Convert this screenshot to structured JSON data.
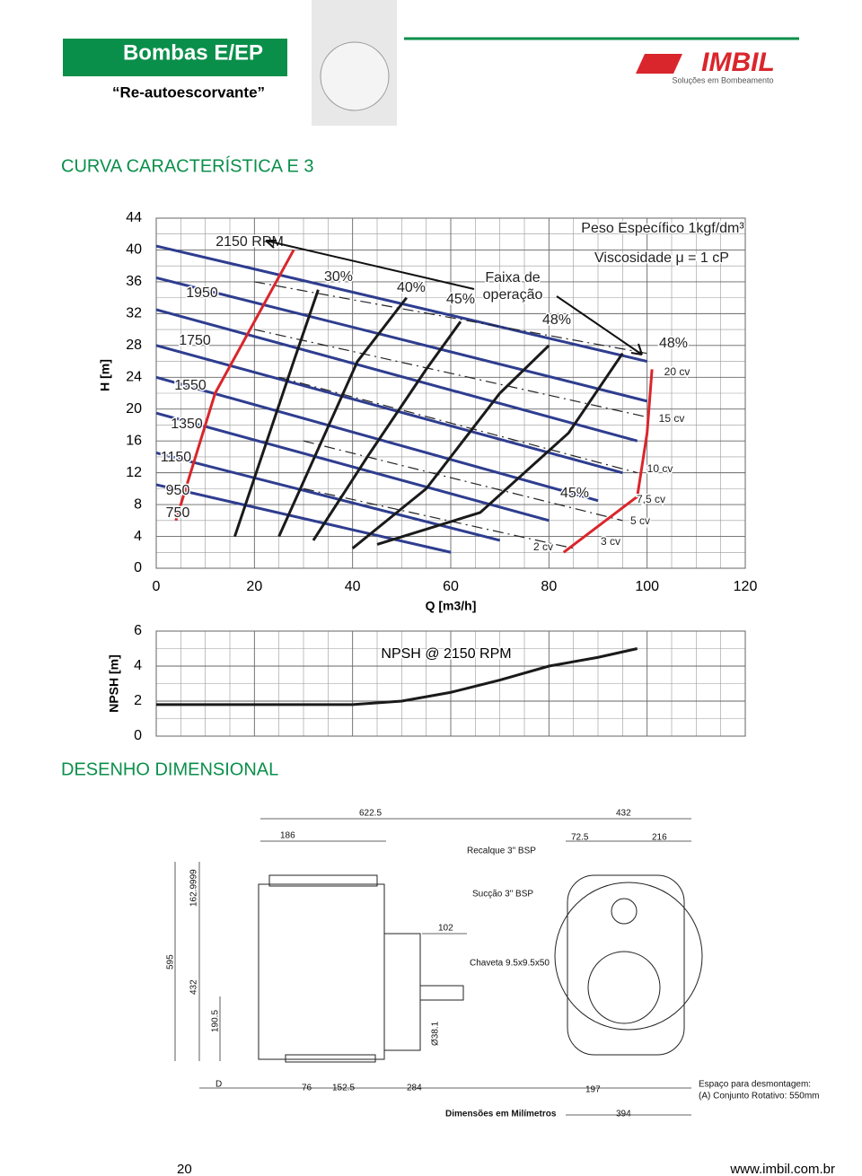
{
  "header": {
    "title": "Bombas E/EP",
    "subtitle": "“Re-autoescorvante”",
    "brand": "IMBIL",
    "tagline": "Soluções em Bombeamento"
  },
  "section_titles": [
    "CURVA CARACTERÍSTICA E 3",
    "DESENHO DIMENSIONAL"
  ],
  "chart_data": [
    {
      "type": "line",
      "xlabel": "Q [m3/h]",
      "ylabel": "H [m]",
      "xlim": [
        0,
        120
      ],
      "ylim": [
        0,
        44
      ],
      "xticks": [
        0,
        20,
        40,
        60,
        80,
        100,
        120
      ],
      "yticks": [
        0,
        4,
        8,
        12,
        16,
        20,
        24,
        28,
        32,
        36,
        40,
        44
      ],
      "grid": true,
      "annotations": [
        "2150 RPM",
        "1950",
        "1750",
        "1550",
        "1350",
        "1150",
        "950",
        "750",
        "30%",
        "40%",
        "45%",
        "Faixa de",
        "operação",
        "48%",
        "48%",
        "45%",
        "2 cv",
        "3 cv",
        "5 cv",
        "7,5 cv",
        "10 cv",
        "15 cv",
        "20 cv",
        "Peso Específico 1kgf/dm³",
        "Viscosidade μ = 1 cP"
      ],
      "series": [
        {
          "color": "#2e3d8f",
          "x": [
            0,
            100
          ],
          "values": [
            40.5,
            26
          ]
        },
        {
          "color": "#2e3d8f",
          "x": [
            0,
            100
          ],
          "values": [
            36.5,
            21
          ]
        },
        {
          "color": "#2e3d8f",
          "x": [
            0,
            98
          ],
          "values": [
            32.5,
            16
          ]
        },
        {
          "color": "#2e3d8f",
          "x": [
            0,
            95
          ],
          "values": [
            28,
            12
          ]
        },
        {
          "color": "#2e3d8f",
          "x": [
            0,
            90
          ],
          "values": [
            24,
            8.5
          ]
        },
        {
          "color": "#2e3d8f",
          "x": [
            0,
            80
          ],
          "values": [
            19.5,
            6
          ]
        },
        {
          "color": "#2e3d8f",
          "x": [
            0,
            70
          ],
          "values": [
            14.5,
            3.5
          ]
        },
        {
          "color": "#2e3d8f",
          "x": [
            0,
            60
          ],
          "values": [
            10.5,
            2
          ]
        },
        {
          "color": "#222222",
          "dash": true,
          "x": [
            20,
            100
          ],
          "values": [
            36,
            27
          ]
        },
        {
          "color": "#222222",
          "dash": true,
          "x": [
            20,
            100
          ],
          "values": [
            30,
            19
          ]
        },
        {
          "color": "#222222",
          "dash": true,
          "x": [
            25,
            98
          ],
          "values": [
            24,
            12
          ]
        },
        {
          "color": "#222222",
          "dash": true,
          "x": [
            30,
            95
          ],
          "values": [
            16,
            6
          ]
        },
        {
          "color": "#222222",
          "dash": true,
          "x": [
            30,
            85
          ],
          "values": [
            10,
            2.5
          ]
        },
        {
          "color": "#1a1a1a",
          "x": [
            16,
            22,
            28,
            33
          ],
          "values": [
            4,
            15,
            26,
            35
          ]
        },
        {
          "color": "#1a1a1a",
          "x": [
            25,
            33,
            41,
            51
          ],
          "values": [
            4,
            15,
            26,
            34
          ]
        },
        {
          "color": "#1a1a1a",
          "x": [
            32,
            43,
            55,
            62
          ],
          "values": [
            3.5,
            14,
            25,
            31
          ]
        },
        {
          "color": "#1a1a1a",
          "x": [
            40,
            55,
            70,
            80
          ],
          "values": [
            2.5,
            10,
            22,
            28
          ]
        },
        {
          "color": "#1a1a1a",
          "x": [
            45,
            66,
            84,
            95
          ],
          "values": [
            3,
            7,
            17,
            27
          ]
        },
        {
          "color": "#d9262c",
          "x": [
            4,
            12,
            28
          ],
          "values": [
            6,
            22,
            40
          ]
        },
        {
          "color": "#d9262c",
          "x": [
            83,
            98,
            100,
            101
          ],
          "values": [
            2,
            9,
            17,
            25
          ]
        }
      ]
    },
    {
      "type": "line",
      "ylabel": "NPSH [m]",
      "annotation": "NPSH @ 2150 RPM",
      "xlim": [
        0,
        120
      ],
      "ylim": [
        0,
        6
      ],
      "yticks": [
        0,
        2,
        4,
        6
      ],
      "series": [
        {
          "color": "#1a1a1a",
          "x": [
            0,
            40,
            50,
            60,
            70,
            80,
            90,
            98
          ],
          "values": [
            1.8,
            1.8,
            2,
            2.5,
            3.2,
            4,
            4.5,
            5
          ]
        }
      ]
    }
  ],
  "drawing": {
    "labels": [
      "622.5",
      "432",
      "186",
      "72.5",
      "216",
      "Recalque 3\" BSP",
      "Sucção 3\" BSP",
      "102",
      "Chaveta 9.5x9.5x50",
      "162.9999",
      "595",
      "432",
      "190.5",
      "Ø38.1",
      "D",
      "76",
      "152.5",
      "284",
      "197",
      "394"
    ],
    "note": "Dimensões em Milímetros",
    "disassembly": [
      "Espaço para desmontagem:",
      "(A) Conjunto Rotativo: 550mm"
    ]
  },
  "footer": {
    "page": "20",
    "url": "www.imbil.com.br"
  }
}
